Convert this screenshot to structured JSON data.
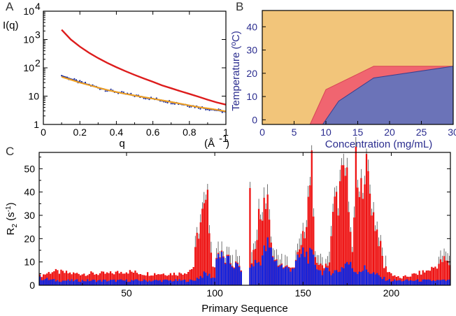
{
  "panel_labels": {
    "a": "A",
    "b": "B",
    "c": "C"
  },
  "chart_data": [
    {
      "id": "A",
      "type": "line",
      "title": "",
      "xlabel": "q",
      "xunit": "(Å-1)",
      "ylabel": "I(q)",
      "xlim": [
        0,
        1
      ],
      "ylim": [
        1,
        10000
      ],
      "yscale": "log",
      "xticks": [
        "0",
        "0.2",
        "0.4",
        "0.6",
        "0.8",
        "1"
      ],
      "yticks": [
        {
          "value": 1,
          "base": "1",
          "exp": ""
        },
        {
          "value": 10,
          "base": "10",
          "exp": ""
        },
        {
          "value": 100,
          "base": "10",
          "exp": "2"
        },
        {
          "value": 1000,
          "base": "10",
          "exp": "3"
        },
        {
          "value": 10000,
          "base": "10",
          "exp": "4"
        }
      ],
      "series": [
        {
          "color": "#dd1c1c",
          "x": [
            0.1,
            0.15,
            0.2,
            0.25,
            0.3,
            0.35,
            0.4,
            0.45,
            0.5,
            0.55,
            0.6,
            0.65,
            0.7,
            0.75,
            0.8,
            0.85,
            0.9,
            0.95,
            1.0
          ],
          "y": [
            2200,
            1000,
            560,
            340,
            220,
            150,
            105,
            76,
            56,
            42,
            32,
            24,
            19,
            15,
            12,
            9.5,
            7.5,
            6,
            5
          ]
        },
        {
          "color": "#2233aa",
          "x": [
            0.1,
            0.15,
            0.2,
            0.25,
            0.3,
            0.35,
            0.4,
            0.45,
            0.5,
            0.55,
            0.6,
            0.65,
            0.7,
            0.75,
            0.8,
            0.85,
            0.9,
            0.95,
            1.0
          ],
          "y": [
            52,
            40,
            31,
            25,
            20,
            16.5,
            14,
            12,
            10.5,
            9.2,
            8.1,
            7.1,
            6.2,
            5.4,
            4.7,
            4.1,
            3.6,
            3.2,
            2.8
          ]
        },
        {
          "color": "#f0a020",
          "x": [
            0.1,
            0.15,
            0.2,
            0.25,
            0.3,
            0.35,
            0.4,
            0.45,
            0.5,
            0.55,
            0.6,
            0.65,
            0.7,
            0.75,
            0.8,
            0.85,
            0.9,
            0.95,
            1.0
          ],
          "y": [
            48,
            38,
            30,
            24.5,
            20,
            16.5,
            14,
            12,
            10.5,
            9.2,
            8.1,
            7.1,
            6.2,
            5.4,
            4.7,
            4.1,
            3.7,
            3.3,
            2.9
          ]
        }
      ]
    },
    {
      "id": "B",
      "type": "area",
      "title": "",
      "xlabel": "Concentration (mg/mL)",
      "ylabel": "Temperature (ºC)",
      "xlim": [
        0,
        30
      ],
      "ylim": [
        -2,
        47
      ],
      "xticks": [
        0,
        5,
        10,
        15,
        20,
        25,
        30
      ],
      "yticks": [
        0,
        10,
        20,
        30,
        40
      ],
      "regions": [
        {
          "color": "#f2c57a",
          "boundary_x": [
            0,
            30
          ],
          "boundary_y": [
            47,
            47
          ]
        },
        {
          "color": "#f06570",
          "boundary_x": [
            7.5,
            10,
            17.5,
            30
          ],
          "boundary_y": [
            -2,
            13,
            23,
            23
          ]
        },
        {
          "color": "#6b73b8",
          "boundary_x": [
            9.5,
            12,
            17.5,
            30
          ],
          "boundary_y": [
            -2,
            8,
            18,
            23
          ]
        }
      ]
    },
    {
      "id": "C",
      "type": "bar",
      "title": "",
      "xlabel": "Primary Sequence",
      "ylabel": "R2 (s-1)",
      "ylabel_main": "R",
      "ylabel_sub": "2",
      "ylabel_rest": " (s",
      "ylabel_sup": "-1",
      "ylabel_close": ")",
      "xlim": [
        1,
        233
      ],
      "ylim": [
        0,
        57
      ],
      "xticks": [
        50,
        100,
        150,
        200
      ],
      "yticks": [
        0,
        10,
        20,
        30,
        40,
        50
      ],
      "series": [
        {
          "name": "",
          "color": "#ee1111",
          "keypoints_x": [
            1,
            8,
            20,
            30,
            40,
            50,
            60,
            70,
            80,
            85,
            88,
            90,
            93,
            96,
            99,
            101,
            105,
            110,
            115,
            118,
            119,
            120,
            121,
            125,
            128,
            130,
            131,
            133,
            135,
            140,
            145,
            150,
            153,
            155,
            156,
            157,
            160,
            165,
            168,
            170,
            172,
            175,
            178,
            180,
            182,
            185,
            187,
            190,
            193,
            196,
            200,
            205,
            210,
            215,
            220,
            225,
            230,
            233
          ],
          "keypoints_y": [
            4,
            6,
            5,
            5,
            5,
            6,
            5,
            5,
            5,
            6,
            8,
            20,
            30,
            35,
            8,
            9,
            6,
            6,
            3,
            3,
            0,
            46,
            7,
            30,
            32,
            40,
            25,
            8,
            6,
            6,
            7,
            20,
            35,
            50,
            25,
            12,
            8,
            10,
            38,
            37,
            45,
            48,
            12,
            50,
            35,
            52,
            45,
            30,
            20,
            8,
            5,
            3,
            4,
            5,
            6,
            8,
            11,
            9
          ]
        },
        {
          "name": "",
          "color": "#1122dd",
          "keypoints_x": [
            1,
            10,
            20,
            40,
            60,
            80,
            88,
            90,
            95,
            100,
            101,
            105,
            110,
            115,
            119,
            120,
            121,
            125,
            130,
            135,
            140,
            145,
            150,
            155,
            160,
            165,
            170,
            175,
            180,
            185,
            190,
            195,
            200,
            210,
            220,
            233
          ],
          "keypoints_y": [
            3,
            2,
            2,
            2,
            2,
            2,
            2,
            3,
            5,
            3,
            14,
            11,
            9,
            7,
            0,
            7,
            9,
            10,
            17,
            10,
            7,
            8,
            14,
            12,
            6,
            6,
            6,
            10,
            6,
            7,
            5,
            3,
            2,
            2,
            2,
            2
          ]
        }
      ]
    }
  ]
}
